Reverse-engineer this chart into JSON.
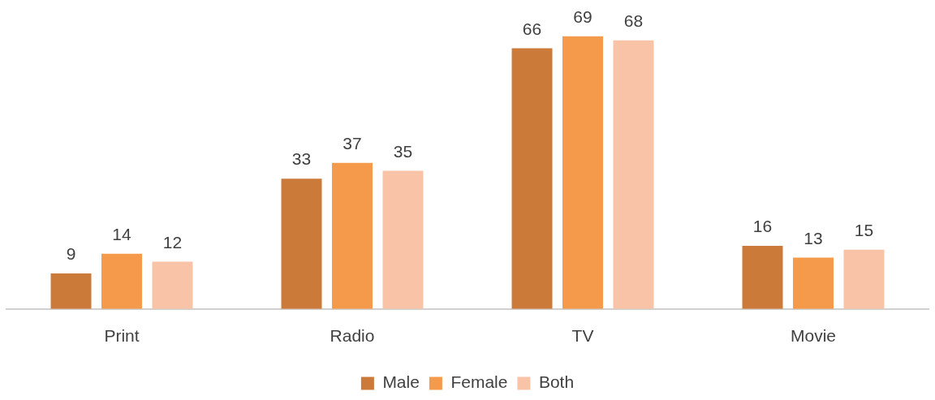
{
  "chart_data": {
    "type": "bar",
    "categories": [
      "Print",
      "Radio",
      "TV",
      "Movie"
    ],
    "series": [
      {
        "name": "Male",
        "color": "#cc7a3a",
        "values": [
          9,
          33,
          66,
          16
        ]
      },
      {
        "name": "Female",
        "color": "#f59a4a",
        "values": [
          14,
          37,
          69,
          13
        ]
      },
      {
        "name": "Both",
        "color": "#f9c3a8",
        "values": [
          12,
          35,
          68,
          15
        ]
      }
    ],
    "data_labels": true,
    "legend": "bottom",
    "grid": false
  }
}
